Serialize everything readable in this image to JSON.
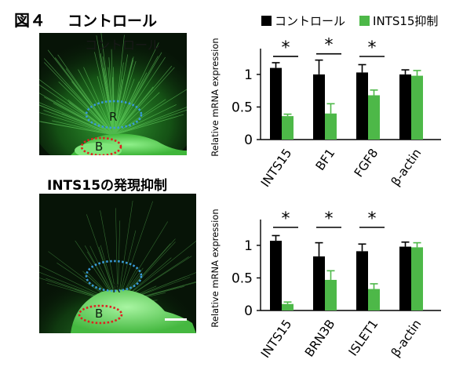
{
  "figure": {
    "title": "図４",
    "panel_top_title": "コントロール",
    "panel_top_overlay": "コントロール",
    "panel_bottom_title": "INTS15の発現抑制",
    "region_r": "R",
    "region_b": "B"
  },
  "legend": {
    "control_label": "コントロール",
    "knockdown_label": "INTS15抑制"
  },
  "colors": {
    "control": "#000000",
    "knockdown": "#4db848",
    "r_outline": "#3a9bd8",
    "b_outline": "#e02020"
  },
  "chart_data": [
    {
      "type": "bar",
      "ylabel": "Relative mRNA expression",
      "ylim": [
        0,
        1.3
      ],
      "yticks": [
        "0",
        "0.5",
        "1"
      ],
      "categories": [
        "INTS15",
        "BF1",
        "FGF8",
        "β-actin"
      ],
      "series": [
        {
          "name": "コントロール",
          "values": [
            1.1,
            1.0,
            1.03,
            1.0
          ],
          "errors": [
            0.08,
            0.22,
            0.12,
            0.07
          ]
        },
        {
          "name": "INTS15抑制",
          "values": [
            0.36,
            0.4,
            0.68,
            0.98
          ],
          "errors": [
            0.03,
            0.15,
            0.08,
            0.08
          ]
        }
      ],
      "significance": [
        "*",
        "*",
        "*",
        ""
      ]
    },
    {
      "type": "bar",
      "ylabel": "Relative mRNA expression",
      "ylim": [
        0,
        1.3
      ],
      "yticks": [
        "0",
        "0.5",
        "1"
      ],
      "categories": [
        "INTS15",
        "BRN3B",
        "ISLET1",
        "β-actin"
      ],
      "series": [
        {
          "name": "コントロール",
          "values": [
            1.07,
            0.83,
            0.91,
            0.98
          ],
          "errors": [
            0.08,
            0.21,
            0.11,
            0.07
          ]
        },
        {
          "name": "INTS15抑制",
          "values": [
            0.1,
            0.47,
            0.33,
            0.97
          ],
          "errors": [
            0.03,
            0.14,
            0.08,
            0.07
          ]
        }
      ],
      "significance": [
        "*",
        "*",
        "*",
        ""
      ]
    }
  ]
}
